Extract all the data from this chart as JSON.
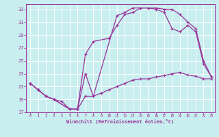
{
  "xlabel": "Windchill (Refroidissement éolien,°C)",
  "bg_color": "#c8eef0",
  "grid_color": "#ffffff",
  "line_color": "#993399",
  "xlim_min": -0.5,
  "xlim_max": 23.4,
  "ylim_min": 17,
  "ylim_max": 33.8,
  "xticks": [
    0,
    1,
    2,
    3,
    4,
    5,
    6,
    7,
    8,
    9,
    10,
    11,
    12,
    13,
    14,
    15,
    16,
    17,
    18,
    19,
    20,
    21,
    22,
    23
  ],
  "yticks": [
    17,
    19,
    21,
    23,
    25,
    27,
    29,
    31,
    33
  ],
  "line1_x": [
    0,
    1,
    2,
    3,
    4,
    5,
    6,
    7,
    8,
    9,
    10,
    11,
    12,
    13,
    14,
    15,
    16,
    17,
    18,
    19,
    20,
    21,
    22,
    23
  ],
  "line1_y": [
    21.5,
    20.5,
    19.5,
    19.0,
    18.7,
    17.5,
    17.5,
    19.5,
    19.5,
    20.0,
    20.5,
    21.0,
    21.5,
    22.0,
    22.2,
    22.2,
    22.5,
    22.7,
    23.0,
    23.2,
    22.8,
    22.6,
    22.2,
    22.2
  ],
  "line2_x": [
    0,
    1,
    2,
    3,
    5,
    6,
    7,
    8,
    10,
    11,
    12,
    13,
    14,
    15,
    16,
    17,
    18,
    19,
    20,
    21,
    22,
    23
  ],
  "line2_y": [
    21.5,
    20.5,
    19.5,
    19.0,
    17.5,
    17.5,
    26.0,
    28.0,
    28.5,
    30.5,
    32.2,
    32.5,
    33.2,
    33.2,
    33.2,
    33.0,
    33.0,
    32.2,
    31.0,
    30.0,
    25.0,
    22.5
  ],
  "line3_x": [
    0,
    1,
    2,
    3,
    5,
    6,
    7,
    8,
    11,
    12,
    13,
    14,
    15,
    16,
    17,
    18,
    19,
    20,
    21,
    22,
    23
  ],
  "line3_y": [
    21.5,
    20.5,
    19.5,
    19.0,
    17.5,
    17.5,
    23.0,
    19.5,
    32.0,
    32.5,
    33.2,
    33.2,
    33.2,
    33.0,
    32.5,
    30.0,
    29.5,
    30.5,
    29.5,
    24.5,
    22.5
  ]
}
